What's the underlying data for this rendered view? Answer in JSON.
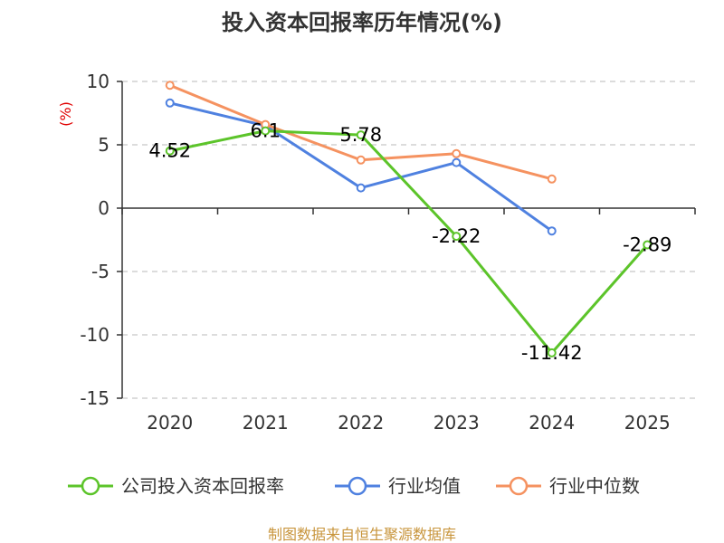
{
  "chart_data": {
    "type": "line",
    "title": "投入资本回报率历年情况(%)",
    "unit_label": "(%)",
    "categories": [
      "2020",
      "2021",
      "2022",
      "2023",
      "2024",
      "2025"
    ],
    "ylim": [
      -15,
      10
    ],
    "yticks": [
      10,
      5,
      0,
      -5,
      -10,
      -15
    ],
    "grid": true,
    "legend_position": "bottom",
    "series": [
      {
        "name": "公司投入资本回报率",
        "color": "#5cc42a",
        "values": [
          4.52,
          6.1,
          5.78,
          -2.22,
          -11.42,
          -2.89
        ],
        "data_labels": [
          "4.52",
          "6.1",
          "5.78",
          "-2.22",
          "-11.42",
          "-2.89"
        ]
      },
      {
        "name": "行业均值",
        "color": "#4f81e0",
        "values": [
          8.3,
          6.5,
          1.6,
          3.6,
          -1.8,
          null
        ]
      },
      {
        "name": "行业中位数",
        "color": "#f59260",
        "values": [
          9.7,
          6.6,
          3.8,
          4.3,
          2.3,
          null
        ]
      }
    ]
  },
  "source_text": "制图数据来自恒生聚源数据库"
}
